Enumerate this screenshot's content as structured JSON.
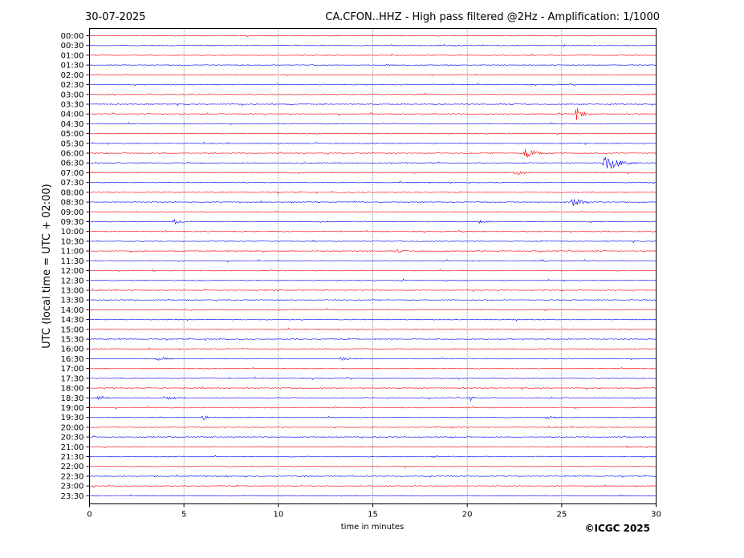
{
  "chart_data": {
    "type": "line",
    "date": "30-07-2025",
    "title": "CA.CFON..HHZ - High pass filtered @2Hz - Amplification: 1/1000",
    "xlabel": "time in minutes",
    "ylabel": "UTC (local time = UTC + 02:00)",
    "copyright": "©ICGC 2025",
    "xlim": [
      0,
      30
    ],
    "x_ticks": [
      0,
      5,
      10,
      15,
      20,
      25,
      30
    ],
    "grid": "vertical dotted at every 5 minutes",
    "trace_colors": [
      "#ff0000",
      "#0000ff"
    ],
    "rows": [
      "00:00",
      "00:30",
      "01:00",
      "01:30",
      "02:00",
      "02:30",
      "03:00",
      "03:30",
      "04:00",
      "04:30",
      "05:00",
      "05:30",
      "06:00",
      "06:30",
      "07:00",
      "07:30",
      "08:00",
      "08:30",
      "09:00",
      "09:30",
      "10:00",
      "10:30",
      "11:00",
      "11:30",
      "12:00",
      "12:30",
      "13:00",
      "13:30",
      "14:00",
      "14:30",
      "15:00",
      "15:30",
      "16:00",
      "16:30",
      "17:00",
      "17:30",
      "18:00",
      "18:30",
      "19:00",
      "19:30",
      "20:00",
      "20:30",
      "21:00",
      "21:30",
      "22:00",
      "22:30",
      "23:00",
      "23:30"
    ],
    "events": [
      {
        "row": "04:00",
        "minute": 25.8,
        "amplitude": 9,
        "duration": 0.5
      },
      {
        "row": "06:00",
        "minute": 23.1,
        "amplitude": 6,
        "duration": 1.0
      },
      {
        "row": "06:30",
        "minute": 27.3,
        "amplitude": 12,
        "duration": 1.2
      },
      {
        "row": "07:00",
        "minute": 22.6,
        "amplitude": 3,
        "duration": 0.6
      },
      {
        "row": "08:30",
        "minute": 25.6,
        "amplitude": 5,
        "duration": 1.0
      },
      {
        "row": "09:30",
        "minute": 4.5,
        "amplitude": 2.5,
        "duration": 0.5
      },
      {
        "row": "09:30",
        "minute": 20.7,
        "amplitude": 2,
        "duration": 0.5
      },
      {
        "row": "11:00",
        "minute": 16.3,
        "amplitude": 2,
        "duration": 0.4
      },
      {
        "row": "11:30",
        "minute": 24.0,
        "amplitude": 2,
        "duration": 0.4
      },
      {
        "row": "12:00",
        "minute": 3.3,
        "amplitude": 2,
        "duration": 0.3
      },
      {
        "row": "12:30",
        "minute": 16.6,
        "amplitude": 2,
        "duration": 0.3
      },
      {
        "row": "16:30",
        "minute": 3.6,
        "amplitude": 2,
        "duration": 0.6
      },
      {
        "row": "16:30",
        "minute": 13.3,
        "amplitude": 2.5,
        "duration": 0.6
      },
      {
        "row": "18:30",
        "minute": 20.2,
        "amplitude": 4,
        "duration": 0.2
      },
      {
        "row": "18:30",
        "minute": 0.5,
        "amplitude": 2,
        "duration": 0.8
      },
      {
        "row": "18:30",
        "minute": 4.0,
        "amplitude": 2,
        "duration": 0.8
      },
      {
        "row": "19:30",
        "minute": 6.0,
        "amplitude": 3,
        "duration": 0.5
      },
      {
        "row": "19:30",
        "minute": 24.2,
        "amplitude": 2,
        "duration": 0.6
      },
      {
        "row": "21:00",
        "minute": 28.5,
        "amplitude": 1.5,
        "duration": 0.3
      },
      {
        "row": "22:30",
        "minute": 11.5,
        "amplitude": 2,
        "duration": 0.2
      }
    ]
  }
}
